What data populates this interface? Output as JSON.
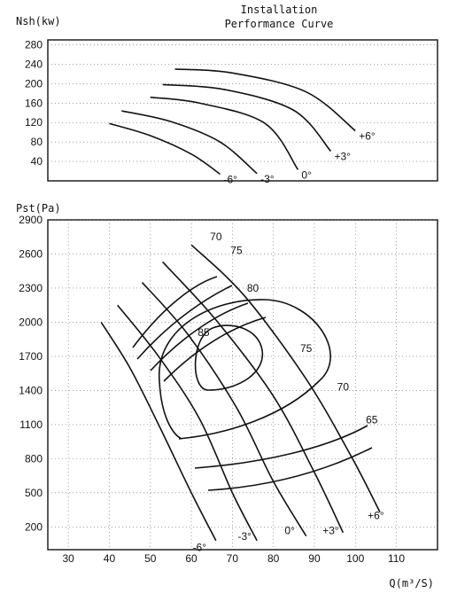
{
  "chart_data": [
    {
      "type": "line",
      "title": "Installation\nPerformance Curve",
      "ylabel": "Nsh(kw)",
      "xlabel": "",
      "ylim": [
        0,
        290
      ],
      "xlim": [
        25,
        120
      ],
      "yticks": [
        40,
        80,
        120,
        160,
        200,
        240,
        280
      ],
      "grid": true,
      "series": [
        {
          "name": "-6°",
          "x": [
            40,
            50,
            60,
            67
          ],
          "y": [
            118,
            93,
            55,
            14
          ]
        },
        {
          "name": "-3°",
          "x": [
            43,
            55,
            67,
            76
          ],
          "y": [
            144,
            122,
            80,
            15
          ]
        },
        {
          "name": "0°",
          "x": [
            50,
            62,
            78,
            86
          ],
          "y": [
            172,
            160,
            118,
            23
          ]
        },
        {
          "name": "+3°",
          "x": [
            53,
            68,
            85,
            94
          ],
          "y": [
            198,
            188,
            145,
            61
          ]
        },
        {
          "name": "+6°",
          "x": [
            56,
            70,
            88,
            100
          ],
          "y": [
            230,
            222,
            183,
            103
          ]
        }
      ]
    },
    {
      "type": "line",
      "title": "",
      "ylabel": "Pst(Pa)",
      "xlabel": "Q(m³/S)",
      "xlim": [
        25,
        120
      ],
      "ylim": [
        0,
        2900
      ],
      "xticks": [
        30,
        40,
        50,
        60,
        70,
        80,
        90,
        100,
        110
      ],
      "yticks": [
        200,
        500,
        800,
        1100,
        1400,
        1700,
        2000,
        2300,
        2600,
        2900
      ],
      "grid": true,
      "series": [
        {
          "name": "-6°",
          "x": [
            38,
            45,
            52,
            60,
            66
          ],
          "y": [
            2000,
            1600,
            1100,
            500,
            80
          ]
        },
        {
          "name": "-3°",
          "x": [
            42,
            52,
            62,
            70,
            76
          ],
          "y": [
            2150,
            1700,
            1150,
            500,
            80
          ]
        },
        {
          "name": "0°",
          "x": [
            48,
            59,
            71,
            80,
            88
          ],
          "y": [
            2350,
            1900,
            1250,
            600,
            120
          ]
        },
        {
          "name": "+3°",
          "x": [
            53,
            66,
            80,
            90,
            97
          ],
          "y": [
            2530,
            2020,
            1350,
            680,
            150
          ]
        },
        {
          "name": "+6°",
          "x": [
            60,
            73,
            88,
            99,
            106
          ],
          "y": [
            2680,
            2230,
            1500,
            820,
            330
          ]
        }
      ],
      "contour_labels": [
        {
          "text": "70",
          "x": 66,
          "y": 2720
        },
        {
          "text": "75",
          "x": 71,
          "y": 2600
        },
        {
          "text": "80",
          "x": 75,
          "y": 2270
        },
        {
          "text": "85",
          "x": 63,
          "y": 1880
        },
        {
          "text": "75",
          "x": 88,
          "y": 1740
        },
        {
          "text": "70",
          "x": 97,
          "y": 1400
        },
        {
          "text": "65",
          "x": 104,
          "y": 1110
        }
      ],
      "series_labels": [
        {
          "text": "-6°",
          "x": 62,
          "y": 50
        },
        {
          "text": "-3°",
          "x": 73,
          "y": 150
        },
        {
          "text": "0°",
          "x": 84,
          "y": 200
        },
        {
          "text": "+3°",
          "x": 94,
          "y": 200
        },
        {
          "text": "+6°",
          "x": 105,
          "y": 330
        }
      ]
    }
  ]
}
